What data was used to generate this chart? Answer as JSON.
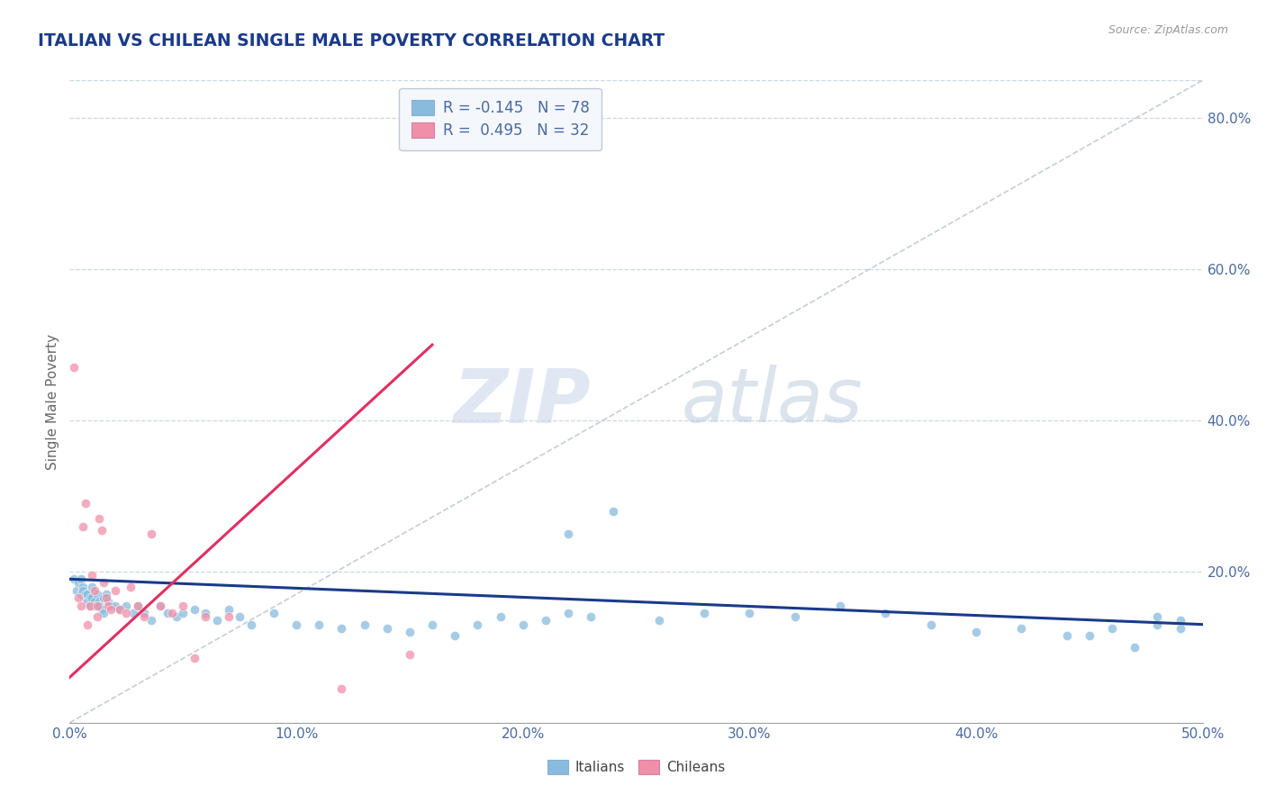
{
  "title": "ITALIAN VS CHILEAN SINGLE MALE POVERTY CORRELATION CHART",
  "source": "Source: ZipAtlas.com",
  "ylabel": "Single Male Poverty",
  "watermark_zip": "ZIP",
  "watermark_atlas": "atlas",
  "italian_color": "#88bbdd",
  "chilean_color": "#f090a8",
  "italian_line_color": "#1a3a8a",
  "chilean_line_color": "#e03060",
  "title_color": "#1a3a8a",
  "axis_color": "#4a6aa0",
  "grid_color": "#c8d8e8",
  "diag_color": "#c0c8d0",
  "xlim": [
    0.0,
    0.5
  ],
  "ylim": [
    0.0,
    0.85
  ],
  "xticks": [
    0.0,
    0.1,
    0.2,
    0.3,
    0.4,
    0.5
  ],
  "xtick_labels": [
    "0.0%",
    "10.0%",
    "20.0%",
    "30.0%",
    "40.0%",
    "50.0%"
  ],
  "yticks": [
    0.0,
    0.2,
    0.4,
    0.6,
    0.8
  ],
  "ytick_labels": [
    "",
    "20.0%",
    "40.0%",
    "60.0%",
    "80.0%"
  ],
  "legend_r1": "R = -0.145",
  "legend_n1": "N = 78",
  "legend_r2": "R =  0.495",
  "legend_n2": "N = 32",
  "bottom_legend": [
    "Italians",
    "Chileans"
  ],
  "italian_x": [
    0.002,
    0.003,
    0.004,
    0.005,
    0.005,
    0.006,
    0.006,
    0.007,
    0.007,
    0.008,
    0.008,
    0.009,
    0.009,
    0.01,
    0.01,
    0.011,
    0.011,
    0.012,
    0.012,
    0.013,
    0.013,
    0.014,
    0.015,
    0.015,
    0.016,
    0.017,
    0.018,
    0.02,
    0.022,
    0.025,
    0.028,
    0.03,
    0.033,
    0.036,
    0.04,
    0.043,
    0.047,
    0.05,
    0.055,
    0.06,
    0.065,
    0.07,
    0.075,
    0.08,
    0.09,
    0.1,
    0.11,
    0.12,
    0.13,
    0.14,
    0.15,
    0.16,
    0.17,
    0.18,
    0.19,
    0.2,
    0.21,
    0.22,
    0.23,
    0.24,
    0.26,
    0.28,
    0.3,
    0.32,
    0.34,
    0.36,
    0.38,
    0.4,
    0.42,
    0.44,
    0.45,
    0.46,
    0.47,
    0.48,
    0.49,
    0.49,
    0.48,
    0.22
  ],
  "italian_y": [
    0.19,
    0.175,
    0.185,
    0.19,
    0.17,
    0.18,
    0.175,
    0.165,
    0.17,
    0.16,
    0.17,
    0.155,
    0.165,
    0.18,
    0.165,
    0.16,
    0.155,
    0.155,
    0.17,
    0.16,
    0.155,
    0.15,
    0.145,
    0.165,
    0.17,
    0.16,
    0.155,
    0.155,
    0.15,
    0.155,
    0.145,
    0.155,
    0.145,
    0.135,
    0.155,
    0.145,
    0.14,
    0.145,
    0.15,
    0.145,
    0.135,
    0.15,
    0.14,
    0.13,
    0.145,
    0.13,
    0.13,
    0.125,
    0.13,
    0.125,
    0.12,
    0.13,
    0.115,
    0.13,
    0.14,
    0.13,
    0.135,
    0.145,
    0.14,
    0.28,
    0.135,
    0.145,
    0.145,
    0.14,
    0.155,
    0.145,
    0.13,
    0.12,
    0.125,
    0.115,
    0.115,
    0.125,
    0.1,
    0.13,
    0.125,
    0.135,
    0.14,
    0.25
  ],
  "chilean_x": [
    0.002,
    0.004,
    0.005,
    0.006,
    0.007,
    0.008,
    0.009,
    0.01,
    0.011,
    0.012,
    0.012,
    0.013,
    0.014,
    0.015,
    0.016,
    0.017,
    0.018,
    0.02,
    0.022,
    0.025,
    0.027,
    0.03,
    0.033,
    0.036,
    0.04,
    0.045,
    0.05,
    0.055,
    0.06,
    0.07,
    0.12,
    0.15
  ],
  "chilean_y": [
    0.47,
    0.165,
    0.155,
    0.26,
    0.29,
    0.13,
    0.155,
    0.195,
    0.175,
    0.155,
    0.14,
    0.27,
    0.255,
    0.185,
    0.165,
    0.155,
    0.15,
    0.175,
    0.15,
    0.145,
    0.18,
    0.155,
    0.14,
    0.25,
    0.155,
    0.145,
    0.155,
    0.085,
    0.14,
    0.14,
    0.045,
    0.09
  ],
  "italian_line_x": [
    0.0,
    0.5
  ],
  "italian_line_y": [
    0.19,
    0.13
  ],
  "chilean_line_x": [
    0.0,
    0.16
  ],
  "chilean_line_y": [
    0.06,
    0.5
  ],
  "diag_line_x": [
    0.0,
    0.5
  ],
  "diag_line_y": [
    0.0,
    0.85
  ]
}
